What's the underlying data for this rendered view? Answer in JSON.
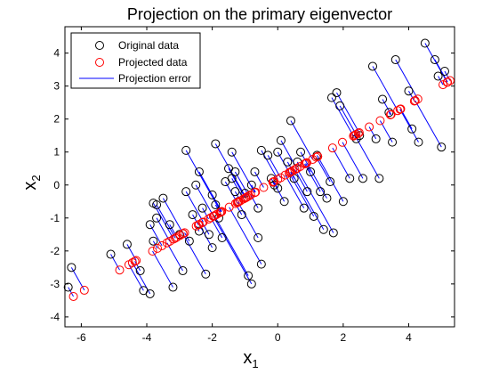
{
  "chart_data": {
    "type": "scatter",
    "title": "Projection on the primary eigenvector",
    "xlabel": {
      "base": "x",
      "subscript": "1"
    },
    "ylabel": {
      "base": "x",
      "subscript": "2"
    },
    "xlim": [
      -6.5,
      5.4
    ],
    "ylim": [
      -4.3,
      4.8
    ],
    "xticks": [
      -6,
      -4,
      -2,
      0,
      2,
      4
    ],
    "yticks": [
      -4,
      -3,
      -2,
      -1,
      0,
      1,
      2,
      3,
      4
    ],
    "grid": false,
    "legend": {
      "placement": "top-left",
      "entries": [
        {
          "label": "Original data",
          "marker": "circle",
          "color": "#000000"
        },
        {
          "label": "Projected data",
          "marker": "circle",
          "color": "#ff0000"
        },
        {
          "label": "Projection error",
          "marker": "line",
          "color": "#0000ff"
        }
      ]
    },
    "eigenvector_slope": 0.569,
    "series": [
      {
        "name": "Original data",
        "color": "#000000",
        "points": [
          [
            -6.4,
            -3.1
          ],
          [
            -6.3,
            -2.5
          ],
          [
            -5.1,
            -2.1
          ],
          [
            -4.6,
            -1.8
          ],
          [
            -4.2,
            -2.6
          ],
          [
            -4.1,
            -3.2
          ],
          [
            -3.9,
            -3.3
          ],
          [
            -3.9,
            -1.2
          ],
          [
            -3.8,
            -1.7
          ],
          [
            -3.8,
            -0.55
          ],
          [
            -3.7,
            -1.0
          ],
          [
            -3.7,
            -0.6
          ],
          [
            -3.5,
            -0.4
          ],
          [
            -3.3,
            -1.2
          ],
          [
            -3.2,
            -3.1
          ],
          [
            -3.0,
            -1.5
          ],
          [
            -2.9,
            -2.6
          ],
          [
            -2.8,
            -0.2
          ],
          [
            -2.8,
            1.05
          ],
          [
            -2.7,
            -1.7
          ],
          [
            -2.6,
            -0.9
          ],
          [
            -2.5,
            0.0
          ],
          [
            -2.4,
            -1.4
          ],
          [
            -2.4,
            0.4
          ],
          [
            -2.3,
            -0.7
          ],
          [
            -2.2,
            -2.7
          ],
          [
            -2.1,
            -1.5
          ],
          [
            -2.0,
            -0.3
          ],
          [
            -2.0,
            -1.9
          ],
          [
            -1.9,
            1.25
          ],
          [
            -1.9,
            -0.6
          ],
          [
            -1.8,
            -1.0
          ],
          [
            -1.7,
            -1.6
          ],
          [
            -1.6,
            0.1
          ],
          [
            -1.5,
            0.5
          ],
          [
            -1.4,
            0.2
          ],
          [
            -1.4,
            1.0
          ],
          [
            -1.3,
            -0.2
          ],
          [
            -1.3,
            0.4
          ],
          [
            -1.2,
            -0.5
          ],
          [
            -1.1,
            -0.9
          ],
          [
            -1.0,
            -0.25
          ],
          [
            -0.9,
            -2.75
          ],
          [
            -0.8,
            -3.0
          ],
          [
            -0.8,
            0.0
          ],
          [
            -0.7,
            0.4
          ],
          [
            -0.6,
            -0.7
          ],
          [
            -0.6,
            -1.6
          ],
          [
            -0.5,
            -2.4
          ],
          [
            -0.5,
            1.05
          ],
          [
            -0.3,
            0.9
          ],
          [
            -0.2,
            0.2
          ],
          [
            -0.1,
            0.0
          ],
          [
            0.0,
            -0.1
          ],
          [
            0.0,
            1.0
          ],
          [
            0.1,
            1.35
          ],
          [
            0.2,
            -0.5
          ],
          [
            0.3,
            0.7
          ],
          [
            0.4,
            1.95
          ],
          [
            0.5,
            0.2
          ],
          [
            0.6,
            0.7
          ],
          [
            0.7,
            1.0
          ],
          [
            0.8,
            -0.7
          ],
          [
            0.9,
            -0.2
          ],
          [
            1.0,
            0.4
          ],
          [
            1.1,
            -0.95
          ],
          [
            1.2,
            0.9
          ],
          [
            1.3,
            -0.2
          ],
          [
            1.4,
            -1.35
          ],
          [
            1.5,
            -0.4
          ],
          [
            1.6,
            0.1
          ],
          [
            1.65,
            2.65
          ],
          [
            1.7,
            -1.45
          ],
          [
            1.8,
            2.8
          ],
          [
            1.9,
            2.4
          ],
          [
            2.0,
            -0.5
          ],
          [
            2.2,
            0.2
          ],
          [
            2.4,
            1.4
          ],
          [
            2.5,
            1.5
          ],
          [
            2.6,
            0.2
          ],
          [
            2.9,
            3.6
          ],
          [
            3.0,
            1.4
          ],
          [
            3.1,
            0.2
          ],
          [
            3.2,
            2.6
          ],
          [
            3.4,
            2.2
          ],
          [
            3.5,
            1.3
          ],
          [
            3.6,
            3.8
          ],
          [
            4.0,
            2.85
          ],
          [
            4.1,
            1.7
          ],
          [
            4.3,
            1.3
          ],
          [
            4.5,
            4.3
          ],
          [
            4.8,
            3.8
          ],
          [
            4.9,
            3.3
          ],
          [
            5.0,
            1.15
          ],
          [
            5.1,
            3.45
          ]
        ]
      },
      {
        "name": "Projected data",
        "color": "#ff0000"
      },
      {
        "name": "Projection error",
        "color": "#0000ff"
      }
    ]
  }
}
